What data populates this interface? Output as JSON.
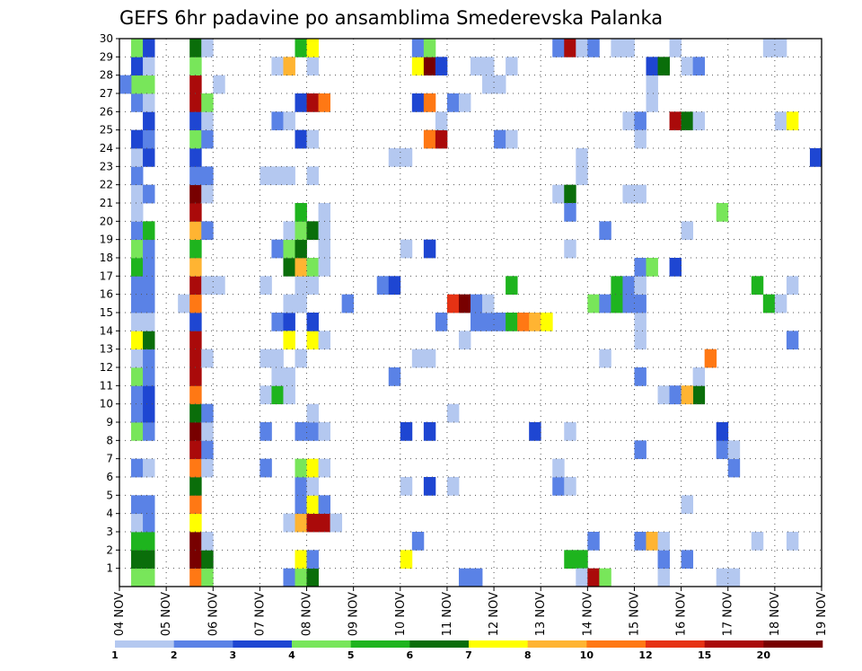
{
  "chart_data": {
    "type": "heatmap",
    "title": "GEFS 6hr padavine po ansamblima Smederevska Palanka",
    "members": [
      1,
      2,
      3,
      4,
      5,
      6,
      7,
      8,
      9,
      10,
      11,
      12,
      13,
      14,
      15,
      16,
      17,
      18,
      19,
      20,
      21,
      22,
      23,
      24,
      25,
      26,
      27,
      28,
      29,
      30
    ],
    "step_hours": 6,
    "x_tick_labels": [
      "04 NOV",
      "05 NOV",
      "06 NOV",
      "07 NOV",
      "08 NOV",
      "09 NOV",
      "10 NOV",
      "11 NOV",
      "12 NOV",
      "13 NOV",
      "14 NOV",
      "15 NOV",
      "16 NOV",
      "17 NOV",
      "18 NOV",
      "19 NOV"
    ],
    "grid": true,
    "legend": {
      "position": "bottom",
      "levels": [
        1,
        2,
        3,
        4,
        5,
        6,
        7,
        8,
        10,
        12,
        15,
        20
      ],
      "colors": [
        "#b4c8f0",
        "#5a82e6",
        "#1e46d2",
        "#78e65a",
        "#1eb41e",
        "#0a6e0a",
        "#ffff00",
        "#ffb432",
        "#ff7814",
        "#e63214",
        "#aa0a0a",
        "#780000"
      ]
    },
    "cells": [
      [
        1,
        2,
        4
      ],
      [
        1,
        3,
        4
      ],
      [
        2,
        2,
        6
      ],
      [
        2,
        3,
        6
      ],
      [
        3,
        2,
        5
      ],
      [
        3,
        3,
        5
      ],
      [
        4,
        2,
        1
      ],
      [
        4,
        3,
        2
      ],
      [
        5,
        2,
        2
      ],
      [
        5,
        3,
        2
      ],
      [
        7,
        2,
        2
      ],
      [
        7,
        3,
        1
      ],
      [
        9,
        2,
        4
      ],
      [
        9,
        3,
        2
      ],
      [
        10,
        2,
        2
      ],
      [
        10,
        3,
        3
      ],
      [
        11,
        2,
        2
      ],
      [
        11,
        3,
        3
      ],
      [
        12,
        2,
        4
      ],
      [
        12,
        3,
        2
      ],
      [
        13,
        2,
        1
      ],
      [
        13,
        3,
        2
      ],
      [
        14,
        2,
        7
      ],
      [
        14,
        3,
        6
      ],
      [
        15,
        2,
        1
      ],
      [
        15,
        3,
        1
      ],
      [
        16,
        2,
        2
      ],
      [
        16,
        3,
        2
      ],
      [
        17,
        2,
        2
      ],
      [
        17,
        3,
        2
      ],
      [
        18,
        2,
        5
      ],
      [
        18,
        3,
        2
      ],
      [
        19,
        2,
        4
      ],
      [
        19,
        3,
        2
      ],
      [
        20,
        2,
        2
      ],
      [
        20,
        3,
        5
      ],
      [
        21,
        2,
        1
      ],
      [
        22,
        2,
        1
      ],
      [
        22,
        3,
        2
      ],
      [
        23,
        2,
        2
      ],
      [
        24,
        2,
        1
      ],
      [
        24,
        3,
        3
      ],
      [
        25,
        2,
        3
      ],
      [
        25,
        3,
        2
      ],
      [
        26,
        3,
        3
      ],
      [
        27,
        2,
        2
      ],
      [
        27,
        3,
        1
      ],
      [
        28,
        2,
        4
      ],
      [
        28,
        3,
        4
      ],
      [
        29,
        2,
        3
      ],
      [
        29,
        3,
        1
      ],
      [
        30,
        2,
        4
      ],
      [
        30,
        3,
        3
      ],
      [
        1,
        7,
        9
      ],
      [
        1,
        8,
        4
      ],
      [
        2,
        7,
        12
      ],
      [
        2,
        8,
        6
      ],
      [
        3,
        7,
        12
      ],
      [
        3,
        8,
        1
      ],
      [
        4,
        7,
        7
      ],
      [
        5,
        7,
        9
      ],
      [
        6,
        7,
        6
      ],
      [
        7,
        7,
        9
      ],
      [
        7,
        8,
        1
      ],
      [
        8,
        7,
        11
      ],
      [
        8,
        8,
        2
      ],
      [
        9,
        7,
        12
      ],
      [
        9,
        8,
        1
      ],
      [
        10,
        7,
        6
      ],
      [
        10,
        8,
        2
      ],
      [
        11,
        7,
        9
      ],
      [
        12,
        7,
        11
      ],
      [
        13,
        7,
        11
      ],
      [
        13,
        8,
        1
      ],
      [
        14,
        7,
        11
      ],
      [
        15,
        7,
        3
      ],
      [
        16,
        6,
        1
      ],
      [
        16,
        7,
        9
      ],
      [
        17,
        7,
        11
      ],
      [
        17,
        8,
        1
      ],
      [
        17,
        9,
        1
      ],
      [
        18,
        7,
        8
      ],
      [
        19,
        7,
        5
      ],
      [
        20,
        7,
        8
      ],
      [
        20,
        8,
        2
      ],
      [
        21,
        7,
        11
      ],
      [
        22,
        7,
        12
      ],
      [
        22,
        8,
        1
      ],
      [
        23,
        7,
        2
      ],
      [
        23,
        8,
        2
      ],
      [
        24,
        7,
        3
      ],
      [
        25,
        7,
        4
      ],
      [
        25,
        8,
        2
      ],
      [
        26,
        7,
        3
      ],
      [
        26,
        8,
        1
      ],
      [
        27,
        7,
        11
      ],
      [
        27,
        8,
        4
      ],
      [
        28,
        7,
        11
      ],
      [
        28,
        9,
        1
      ],
      [
        29,
        7,
        4
      ],
      [
        30,
        7,
        6
      ],
      [
        30,
        8,
        1
      ],
      [
        1,
        15,
        2
      ],
      [
        1,
        16,
        4
      ],
      [
        1,
        17,
        6
      ],
      [
        2,
        16,
        7
      ],
      [
        2,
        17,
        2
      ],
      [
        4,
        15,
        1
      ],
      [
        4,
        16,
        8
      ],
      [
        4,
        17,
        11
      ],
      [
        4,
        18,
        11
      ],
      [
        4,
        19,
        1
      ],
      [
        5,
        16,
        2
      ],
      [
        5,
        17,
        7
      ],
      [
        5,
        18,
        2
      ],
      [
        6,
        16,
        2
      ],
      [
        6,
        17,
        1
      ],
      [
        7,
        13,
        2
      ],
      [
        7,
        16,
        4
      ],
      [
        7,
        17,
        7
      ],
      [
        7,
        18,
        1
      ],
      [
        9,
        13,
        2
      ],
      [
        9,
        16,
        2
      ],
      [
        9,
        17,
        2
      ],
      [
        9,
        18,
        1
      ],
      [
        10,
        17,
        1
      ],
      [
        11,
        13,
        1
      ],
      [
        11,
        14,
        5
      ],
      [
        11,
        15,
        1
      ],
      [
        12,
        14,
        1
      ],
      [
        12,
        15,
        1
      ],
      [
        13,
        13,
        1
      ],
      [
        13,
        14,
        1
      ],
      [
        13,
        16,
        1
      ],
      [
        14,
        17,
        7
      ],
      [
        14,
        18,
        1
      ],
      [
        15,
        14,
        2
      ],
      [
        15,
        15,
        3
      ],
      [
        15,
        17,
        3
      ],
      [
        16,
        15,
        1
      ],
      [
        16,
        16,
        1
      ],
      [
        17,
        13,
        1
      ],
      [
        17,
        16,
        1
      ],
      [
        17,
        17,
        1
      ],
      [
        18,
        15,
        6
      ],
      [
        18,
        16,
        8
      ],
      [
        18,
        17,
        4
      ],
      [
        18,
        18,
        1
      ],
      [
        19,
        14,
        2
      ],
      [
        19,
        15,
        4
      ],
      [
        19,
        16,
        6
      ],
      [
        19,
        18,
        1
      ],
      [
        20,
        15,
        1
      ],
      [
        20,
        16,
        4
      ],
      [
        20,
        17,
        6
      ],
      [
        20,
        18,
        1
      ],
      [
        21,
        16,
        5
      ],
      [
        21,
        18,
        1
      ],
      [
        23,
        13,
        1
      ],
      [
        23,
        14,
        1
      ],
      [
        23,
        15,
        1
      ],
      [
        23,
        17,
        1
      ],
      [
        25,
        16,
        3
      ],
      [
        25,
        17,
        1
      ],
      [
        26,
        14,
        2
      ],
      [
        26,
        15,
        1
      ],
      [
        27,
        16,
        3
      ],
      [
        27,
        17,
        11
      ],
      [
        27,
        18,
        9
      ],
      [
        28,
        1,
        2
      ],
      [
        29,
        14,
        1
      ],
      [
        29,
        15,
        8
      ],
      [
        29,
        17,
        1
      ],
      [
        30,
        16,
        5
      ],
      [
        30,
        17,
        7
      ],
      [
        1,
        30,
        2
      ],
      [
        2,
        25,
        7
      ],
      [
        3,
        26,
        2
      ],
      [
        6,
        25,
        1
      ],
      [
        6,
        27,
        3
      ],
      [
        6,
        29,
        1
      ],
      [
        9,
        25,
        3
      ],
      [
        9,
        27,
        3
      ],
      [
        10,
        29,
        1
      ],
      [
        12,
        24,
        2
      ],
      [
        13,
        26,
        1
      ],
      [
        13,
        27,
        1
      ],
      [
        14,
        15,
        7
      ],
      [
        15,
        28,
        2
      ],
      [
        16,
        20,
        2
      ],
      [
        16,
        29,
        10
      ],
      [
        16,
        30,
        12
      ],
      [
        17,
        23,
        2
      ],
      [
        17,
        24,
        3
      ],
      [
        19,
        25,
        1
      ],
      [
        19,
        27,
        3
      ],
      [
        24,
        24,
        1
      ],
      [
        24,
        25,
        1
      ],
      [
        25,
        27,
        9
      ],
      [
        25,
        28,
        11
      ],
      [
        26,
        28,
        1
      ],
      [
        27,
        26,
        3
      ],
      [
        27,
        27,
        9
      ],
      [
        27,
        29,
        2
      ],
      [
        27,
        30,
        1
      ],
      [
        29,
        26,
        7
      ],
      [
        29,
        27,
        12
      ],
      [
        29,
        28,
        3
      ],
      [
        30,
        26,
        2
      ],
      [
        30,
        27,
        4
      ],
      [
        1,
        31,
        2
      ],
      [
        15,
        31,
        2
      ],
      [
        15,
        32,
        2
      ],
      [
        15,
        33,
        2
      ],
      [
        15,
        34,
        5
      ],
      [
        15,
        35,
        9
      ],
      [
        15,
        36,
        8
      ],
      [
        15,
        37,
        7
      ],
      [
        16,
        31,
        2
      ],
      [
        16,
        32,
        1
      ],
      [
        17,
        34,
        5
      ],
      [
        29,
        31,
        1
      ],
      [
        29,
        32,
        1
      ],
      [
        29,
        34,
        1
      ],
      [
        30,
        38,
        2
      ],
      [
        25,
        33,
        2
      ],
      [
        25,
        34,
        1
      ],
      [
        28,
        32,
        1
      ],
      [
        28,
        33,
        1
      ],
      [
        14,
        30,
        1
      ],
      [
        22,
        38,
        1
      ],
      [
        22,
        39,
        6
      ],
      [
        21,
        39,
        2
      ],
      [
        19,
        39,
        1
      ],
      [
        9,
        36,
        3
      ],
      [
        9,
        39,
        1
      ],
      [
        6,
        38,
        2
      ],
      [
        6,
        39,
        1
      ],
      [
        3,
        41,
        2
      ],
      [
        2,
        39,
        5
      ],
      [
        2,
        40,
        5
      ],
      [
        1,
        40,
        1
      ],
      [
        1,
        41,
        11
      ],
      [
        1,
        42,
        4
      ],
      [
        7,
        38,
        1
      ],
      [
        23,
        40,
        1
      ],
      [
        30,
        39,
        11
      ],
      [
        30,
        40,
        1
      ],
      [
        30,
        41,
        2
      ],
      [
        30,
        43,
        1
      ],
      [
        24,
        40,
        1
      ],
      [
        1,
        47,
        1
      ],
      [
        2,
        47,
        2
      ],
      [
        3,
        45,
        2
      ],
      [
        3,
        46,
        8
      ],
      [
        3,
        47,
        1
      ],
      [
        8,
        45,
        2
      ],
      [
        11,
        47,
        1
      ],
      [
        11,
        48,
        2
      ],
      [
        11,
        49,
        8
      ],
      [
        11,
        50,
        6
      ],
      [
        12,
        45,
        2
      ],
      [
        13,
        42,
        1
      ],
      [
        14,
        45,
        1
      ],
      [
        15,
        45,
        1
      ],
      [
        16,
        41,
        4
      ],
      [
        16,
        42,
        2
      ],
      [
        16,
        43,
        5
      ],
      [
        16,
        44,
        2
      ],
      [
        16,
        45,
        2
      ],
      [
        17,
        43,
        5
      ],
      [
        17,
        44,
        2
      ],
      [
        17,
        45,
        1
      ],
      [
        18,
        45,
        2
      ],
      [
        18,
        46,
        4
      ],
      [
        18,
        48,
        3
      ],
      [
        22,
        44,
        1
      ],
      [
        22,
        45,
        1
      ],
      [
        26,
        44,
        1
      ],
      [
        26,
        45,
        2
      ],
      [
        26,
        48,
        11
      ],
      [
        26,
        49,
        6
      ],
      [
        26,
        50,
        1
      ],
      [
        27,
        46,
        1
      ],
      [
        28,
        46,
        1
      ],
      [
        29,
        46,
        3
      ],
      [
        29,
        47,
        6
      ],
      [
        29,
        49,
        1
      ],
      [
        29,
        50,
        2
      ],
      [
        30,
        44,
        1
      ],
      [
        30,
        48,
        1
      ],
      [
        25,
        45,
        1
      ],
      [
        2,
        49,
        2
      ],
      [
        5,
        49,
        1
      ],
      [
        20,
        42,
        2
      ],
      [
        1,
        52,
        1
      ],
      [
        3,
        55,
        1
      ],
      [
        7,
        53,
        2
      ],
      [
        8,
        52,
        2
      ],
      [
        8,
        53,
        1
      ],
      [
        9,
        52,
        3
      ],
      [
        11,
        50,
        6
      ],
      [
        12,
        50,
        1
      ],
      [
        13,
        51,
        9
      ],
      [
        16,
        56,
        5
      ],
      [
        16,
        57,
        1
      ],
      [
        17,
        55,
        5
      ],
      [
        17,
        58,
        1
      ],
      [
        20,
        49,
        1
      ],
      [
        21,
        52,
        4
      ],
      [
        24,
        60,
        3
      ],
      [
        26,
        57,
        1
      ],
      [
        26,
        58,
        7
      ],
      [
        30,
        56,
        1
      ],
      [
        30,
        57,
        1
      ],
      [
        3,
        58,
        1
      ],
      [
        1,
        53,
        1
      ],
      [
        11,
        48,
        2
      ],
      [
        11,
        49,
        8
      ],
      [
        14,
        58,
        2
      ]
    ]
  }
}
